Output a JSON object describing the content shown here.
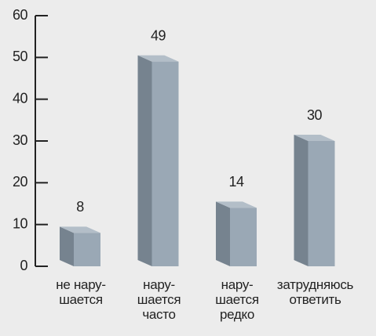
{
  "chart_data": {
    "type": "bar3d",
    "categories": [
      "не нару-\nшается",
      "нару-\nшается\nчасто",
      "нару-\nшается\nредко",
      "затрудняюсь\nответить"
    ],
    "values": [
      8,
      49,
      14,
      30
    ],
    "color": "#9aa8b5",
    "ylim": [
      0,
      60
    ],
    "yticks": [
      0,
      10,
      20,
      30,
      40,
      50,
      60
    ]
  }
}
